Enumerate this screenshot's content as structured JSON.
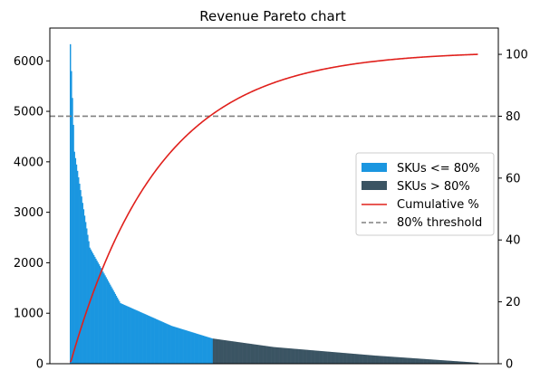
{
  "chart_data": {
    "type": "bar",
    "title": "Revenue Pareto chart",
    "xlabel": "",
    "ylabel": "",
    "y2label": "",
    "ylim": [
      0,
      6650
    ],
    "ylim_right": [
      0,
      108.5
    ],
    "yticks": [
      0,
      1000,
      2000,
      3000,
      4000,
      5000,
      6000
    ],
    "yticks_right": [
      0,
      20,
      40,
      60,
      80,
      100
    ],
    "sku_count": 400,
    "bar_value_model": {
      "description": "sorted revenue per SKU (descending), read off the left axis",
      "first_value": 6330,
      "checkpoints": [
        {
          "rank": 1,
          "value": 6330
        },
        {
          "rank": 5,
          "value": 4200
        },
        {
          "rank": 20,
          "value": 2300
        },
        {
          "rank": 50,
          "value": 1200
        },
        {
          "rank": 100,
          "value": 750
        },
        {
          "rank": 140,
          "value": 500
        },
        {
          "rank": 200,
          "value": 330
        },
        {
          "rank": 300,
          "value": 160
        },
        {
          "rank": 400,
          "value": 20
        }
      ]
    },
    "cumulative_pct_checkpoints": [
      {
        "rank": 1,
        "value": 0.5
      },
      {
        "rank": 20,
        "value": 20
      },
      {
        "rank": 60,
        "value": 50
      },
      {
        "rank": 140,
        "value": 80
      },
      {
        "rank": 250,
        "value": 95
      },
      {
        "rank": 400,
        "value": 100
      }
    ],
    "threshold_pct": 80,
    "split_rank": 140,
    "series": [
      {
        "name": "SKUs <= 80%",
        "color": "#1a96e0",
        "kind": "bar"
      },
      {
        "name": "SKUs > 80%",
        "color": "#3b5463",
        "kind": "bar"
      },
      {
        "name": "Cumulative %",
        "color": "#e0201c",
        "kind": "line",
        "axis": "right"
      },
      {
        "name": "80% threshold",
        "color": "#808080",
        "kind": "dashed-line",
        "axis": "right"
      }
    ],
    "legend_position": "center-right",
    "grid": false
  }
}
